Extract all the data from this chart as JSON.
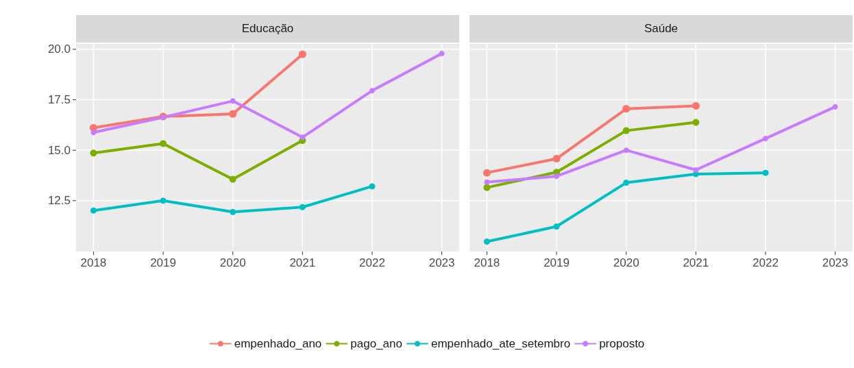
{
  "chart_data": [
    {
      "type": "line",
      "title": "Educação",
      "x": [
        2018,
        2019,
        2020,
        2021,
        2022,
        2023
      ],
      "xlim": [
        2017.75,
        2023.25
      ],
      "xticks": [
        2018,
        2019,
        2020,
        2021,
        2022,
        2023
      ],
      "ylim": [
        9.98,
        20.27
      ],
      "yticks": [
        {
          "value": 12.5,
          "label": "12.5"
        },
        {
          "value": 15,
          "label": "15.0"
        },
        {
          "value": 17.5,
          "label": "17.5"
        },
        {
          "value": 20,
          "label": "20.0"
        }
      ],
      "grid": true,
      "legend": "bottom",
      "marker": "circle",
      "line_style": "solid",
      "series": [
        {
          "name": "empenhado_ano",
          "color": "#f8766d",
          "values": [
            16.11,
            16.67,
            16.8,
            19.75,
            null,
            null
          ]
        },
        {
          "name": "pago_ano",
          "color": "#7cae00",
          "values": [
            14.86,
            15.33,
            13.56,
            15.48,
            null,
            null
          ]
        },
        {
          "name": "empenhado_ate_setembro",
          "color": "#00bfc4",
          "values": [
            12.01,
            12.5,
            11.94,
            12.18,
            13.21,
            null
          ]
        },
        {
          "name": "proposto",
          "color": "#c77cff",
          "values": [
            15.88,
            16.63,
            17.44,
            15.64,
            17.95,
            19.79
          ]
        }
      ]
    },
    {
      "type": "line",
      "title": "Saúde",
      "x": [
        2018,
        2019,
        2020,
        2021,
        2022,
        2023
      ],
      "xlim": [
        2017.75,
        2023.25
      ],
      "xticks": [
        2018,
        2019,
        2020,
        2021,
        2022,
        2023
      ],
      "ylim": [
        9.98,
        20.27
      ],
      "yticks": [
        12.5,
        15,
        17.5,
        20
      ],
      "grid": true,
      "tick_labels": "x",
      "marker": "circle",
      "line_style": "solid",
      "series": [
        {
          "color": "#f8766d",
          "values": [
            13.88,
            14.58,
            17.05,
            17.2,
            null,
            null
          ]
        },
        {
          "color": "#7cae00",
          "values": [
            13.15,
            13.91,
            15.97,
            16.38,
            null,
            null
          ]
        },
        {
          "color": "#00bfc4",
          "values": [
            10.47,
            11.22,
            13.39,
            13.82,
            13.88,
            null
          ]
        },
        {
          "color": "#c77cff",
          "values": [
            13.42,
            13.71,
            15.0,
            14.02,
            15.58,
            17.15
          ]
        }
      ]
    }
  ]
}
